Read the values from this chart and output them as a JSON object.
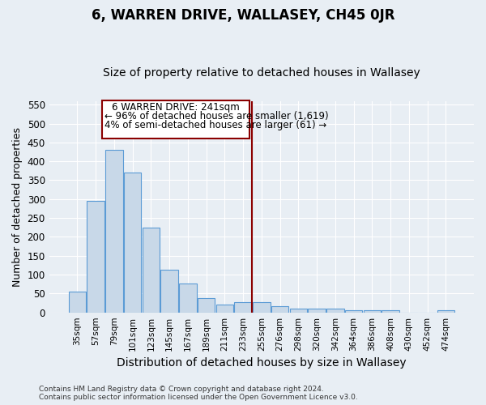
{
  "title": "6, WARREN DRIVE, WALLASEY, CH45 0JR",
  "subtitle": "Size of property relative to detached houses in Wallasey",
  "xlabel": "Distribution of detached houses by size in Wallasey",
  "ylabel": "Number of detached properties",
  "categories": [
    "35sqm",
    "57sqm",
    "79sqm",
    "101sqm",
    "123sqm",
    "145sqm",
    "167sqm",
    "189sqm",
    "211sqm",
    "233sqm",
    "255sqm",
    "276sqm",
    "298sqm",
    "320sqm",
    "342sqm",
    "364sqm",
    "386sqm",
    "408sqm",
    "430sqm",
    "452sqm",
    "474sqm"
  ],
  "values": [
    55,
    295,
    430,
    370,
    225,
    113,
    76,
    38,
    20,
    27,
    27,
    16,
    10,
    10,
    9,
    5,
    5,
    5,
    0,
    0,
    5
  ],
  "bar_color": "#c8d8e8",
  "bar_edgecolor": "#5b9bd5",
  "bg_color": "#e8eef4",
  "grid_color": "#ffffff",
  "vline_color": "#8b0000",
  "annotation_line1": "6 WARREN DRIVE: 241sqm",
  "annotation_line2": "← 96% of detached houses are smaller (1,619)",
  "annotation_line3": "4% of semi-detached houses are larger (61) →",
  "footer": "Contains HM Land Registry data © Crown copyright and database right 2024.\nContains public sector information licensed under the Open Government Licence v3.0.",
  "ylim": [
    0,
    560
  ],
  "yticks": [
    0,
    50,
    100,
    150,
    200,
    250,
    300,
    350,
    400,
    450,
    500,
    550
  ]
}
